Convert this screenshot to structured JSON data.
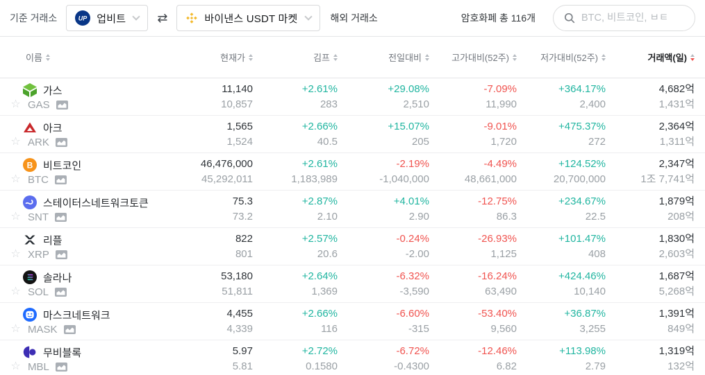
{
  "topbar": {
    "base_exchange_label": "기준 거래소",
    "base_exchange": "업비트",
    "swap_glyph": "⇄",
    "quote_exchange": "바이낸스 USDT 마켓",
    "overseas_label": "해외 거래소",
    "total_count": "암호화폐 총 116개",
    "search_placeholder": "BTC, 비트코인, ㅂㅌ"
  },
  "colors": {
    "positive": "#20b5a0",
    "negative": "#f0534f",
    "upbit_navy": "#093687",
    "binance_yellow": "#f3ba2f",
    "text_primary": "#2e3338",
    "text_secondary": "#9aa0a5"
  },
  "icons": {
    "upbit_logo": "upbit-circle-UP",
    "binance_logo": "yellow-diamonds",
    "swap": "double-arrows",
    "chevron": "chevron-down",
    "search": "magnifier",
    "favorite": "☆",
    "chart": "mini-area-chart",
    "sort": "up-down-triangles"
  },
  "table": {
    "columns": [
      {
        "label": "이름",
        "key": "name",
        "align": "left",
        "active": false
      },
      {
        "label": "현재가",
        "key": "price",
        "align": "right",
        "active": false
      },
      {
        "label": "김프",
        "key": "kimp",
        "align": "right",
        "active": false
      },
      {
        "label": "전일대비",
        "key": "day",
        "align": "right",
        "active": false
      },
      {
        "label": "고가대비(52주)",
        "key": "high",
        "align": "right",
        "active": false
      },
      {
        "label": "저가대비(52주)",
        "key": "low",
        "align": "right",
        "active": false
      },
      {
        "label": "거래액(일)",
        "key": "vol",
        "align": "right",
        "active": true,
        "sort": "desc"
      }
    ],
    "rows": [
      {
        "name": "가스",
        "symbol": "GAS",
        "icon": "gas-coin-icon",
        "price": "11,140",
        "price_sub": "10,857",
        "kimp": "+2.61%",
        "kimp_sub": "283",
        "kimp_dir": "up",
        "day": "+29.08%",
        "day_sub": "2,510",
        "day_dir": "up",
        "high": "-7.09%",
        "high_sub": "11,990",
        "high_dir": "down",
        "low": "+364.17%",
        "low_sub": "2,400",
        "low_dir": "up",
        "vol": "4,682억",
        "vol_sub": "1,431억"
      },
      {
        "name": "아크",
        "symbol": "ARK",
        "icon": "ark-coin-icon",
        "price": "1,565",
        "price_sub": "1,524",
        "kimp": "+2.66%",
        "kimp_sub": "40.5",
        "kimp_dir": "up",
        "day": "+15.07%",
        "day_sub": "205",
        "day_dir": "up",
        "high": "-9.01%",
        "high_sub": "1,720",
        "high_dir": "down",
        "low": "+475.37%",
        "low_sub": "272",
        "low_dir": "up",
        "vol": "2,364억",
        "vol_sub": "1,311억"
      },
      {
        "name": "비트코인",
        "symbol": "BTC",
        "icon": "btc-coin-icon",
        "price": "46,476,000",
        "price_sub": "45,292,011",
        "kimp": "+2.61%",
        "kimp_sub": "1,183,989",
        "kimp_dir": "up",
        "day": "-2.19%",
        "day_sub": "-1,040,000",
        "day_dir": "down",
        "high": "-4.49%",
        "high_sub": "48,661,000",
        "high_dir": "down",
        "low": "+124.52%",
        "low_sub": "20,700,000",
        "low_dir": "up",
        "vol": "2,347억",
        "vol_sub": "1조 7,741억"
      },
      {
        "name": "스테이터스네트워크토큰",
        "symbol": "SNT",
        "icon": "snt-coin-icon",
        "price": "75.3",
        "price_sub": "73.2",
        "kimp": "+2.87%",
        "kimp_sub": "2.10",
        "kimp_dir": "up",
        "day": "+4.01%",
        "day_sub": "2.90",
        "day_dir": "up",
        "high": "-12.75%",
        "high_sub": "86.3",
        "high_dir": "down",
        "low": "+234.67%",
        "low_sub": "22.5",
        "low_dir": "up",
        "vol": "1,879억",
        "vol_sub": "208억"
      },
      {
        "name": "리플",
        "symbol": "XRP",
        "icon": "xrp-coin-icon",
        "price": "822",
        "price_sub": "801",
        "kimp": "+2.57%",
        "kimp_sub": "20.6",
        "kimp_dir": "up",
        "day": "-0.24%",
        "day_sub": "-2.00",
        "day_dir": "down",
        "high": "-26.93%",
        "high_sub": "1,125",
        "high_dir": "down",
        "low": "+101.47%",
        "low_sub": "408",
        "low_dir": "up",
        "vol": "1,830억",
        "vol_sub": "2,603억"
      },
      {
        "name": "솔라나",
        "symbol": "SOL",
        "icon": "sol-coin-icon",
        "price": "53,180",
        "price_sub": "51,811",
        "kimp": "+2.64%",
        "kimp_sub": "1,369",
        "kimp_dir": "up",
        "day": "-6.32%",
        "day_sub": "-3,590",
        "day_dir": "down",
        "high": "-16.24%",
        "high_sub": "63,490",
        "high_dir": "down",
        "low": "+424.46%",
        "low_sub": "10,140",
        "low_dir": "up",
        "vol": "1,687억",
        "vol_sub": "5,268억"
      },
      {
        "name": "마스크네트워크",
        "symbol": "MASK",
        "icon": "mask-coin-icon",
        "price": "4,455",
        "price_sub": "4,339",
        "kimp": "+2.66%",
        "kimp_sub": "116",
        "kimp_dir": "up",
        "day": "-6.60%",
        "day_sub": "-315",
        "day_dir": "down",
        "high": "-53.40%",
        "high_sub": "9,560",
        "high_dir": "down",
        "low": "+36.87%",
        "low_sub": "3,255",
        "low_dir": "up",
        "vol": "1,391억",
        "vol_sub": "849억"
      },
      {
        "name": "무비블록",
        "symbol": "MBL",
        "icon": "mbl-coin-icon",
        "price": "5.97",
        "price_sub": "5.81",
        "kimp": "+2.72%",
        "kimp_sub": "0.1580",
        "kimp_dir": "up",
        "day": "-6.72%",
        "day_sub": "-0.4300",
        "day_dir": "down",
        "high": "-12.46%",
        "high_sub": "6.82",
        "high_dir": "down",
        "low": "+113.98%",
        "low_sub": "2.79",
        "low_dir": "up",
        "vol": "1,319억",
        "vol_sub": "132억"
      }
    ]
  }
}
